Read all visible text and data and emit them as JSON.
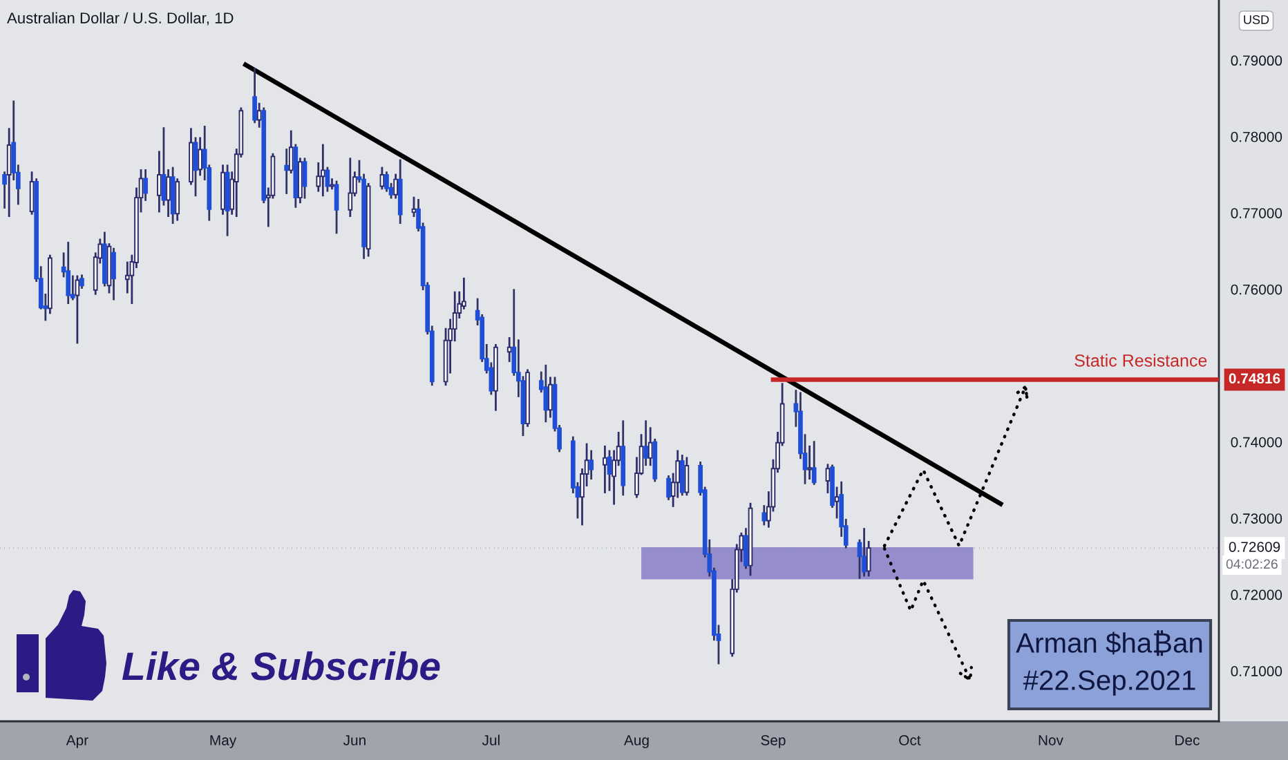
{
  "chart_data": {
    "type": "candlestick",
    "title": "Australian Dollar / U.S. Dollar, 1D",
    "ylabel": "USD",
    "x": [
      "2021-03-16",
      "2021-03-17",
      "2021-03-18",
      "2021-03-19",
      "2021-03-22",
      "2021-03-23",
      "2021-03-24",
      "2021-03-25",
      "2021-03-26",
      "2021-03-29",
      "2021-03-30",
      "2021-03-31",
      "2021-04-01",
      "2021-04-02",
      "2021-04-05",
      "2021-04-06",
      "2021-04-07",
      "2021-04-08",
      "2021-04-09",
      "2021-04-12",
      "2021-04-13",
      "2021-04-14",
      "2021-04-15",
      "2021-04-16",
      "2021-04-19",
      "2021-04-20",
      "2021-04-21",
      "2021-04-22",
      "2021-04-23",
      "2021-04-26",
      "2021-04-27",
      "2021-04-28",
      "2021-04-29",
      "2021-04-30",
      "2021-05-03",
      "2021-05-04",
      "2021-05-05",
      "2021-05-06",
      "2021-05-07",
      "2021-05-10",
      "2021-05-11",
      "2021-05-12",
      "2021-05-13",
      "2021-05-14",
      "2021-05-17",
      "2021-05-18",
      "2021-05-19",
      "2021-05-20",
      "2021-05-21",
      "2021-05-24",
      "2021-05-25",
      "2021-05-26",
      "2021-05-27",
      "2021-05-28",
      "2021-05-31",
      "2021-06-01",
      "2021-06-02",
      "2021-06-03",
      "2021-06-04",
      "2021-06-07",
      "2021-06-08",
      "2021-06-09",
      "2021-06-10",
      "2021-06-11",
      "2021-06-14",
      "2021-06-15",
      "2021-06-16",
      "2021-06-17",
      "2021-06-18",
      "2021-06-21",
      "2021-06-22",
      "2021-06-23",
      "2021-06-24",
      "2021-06-25",
      "2021-06-28",
      "2021-06-29",
      "2021-06-30",
      "2021-07-01",
      "2021-07-02",
      "2021-07-05",
      "2021-07-06",
      "2021-07-07",
      "2021-07-08",
      "2021-07-09",
      "2021-07-12",
      "2021-07-13",
      "2021-07-14",
      "2021-07-15",
      "2021-07-16",
      "2021-07-19",
      "2021-07-20",
      "2021-07-21",
      "2021-07-22",
      "2021-07-23",
      "2021-07-26",
      "2021-07-27",
      "2021-07-28",
      "2021-07-29",
      "2021-07-30",
      "2021-08-02",
      "2021-08-03",
      "2021-08-04",
      "2021-08-05",
      "2021-08-06",
      "2021-08-09",
      "2021-08-10",
      "2021-08-11",
      "2021-08-12",
      "2021-08-13",
      "2021-08-16",
      "2021-08-17",
      "2021-08-18",
      "2021-08-19",
      "2021-08-20",
      "2021-08-23",
      "2021-08-24",
      "2021-08-25",
      "2021-08-26",
      "2021-08-27",
      "2021-08-30",
      "2021-08-31",
      "2021-09-01",
      "2021-09-02",
      "2021-09-03",
      "2021-09-06",
      "2021-09-07",
      "2021-09-08",
      "2021-09-09",
      "2021-09-10",
      "2021-09-13",
      "2021-09-14",
      "2021-09-15",
      "2021-09-16",
      "2021-09-17",
      "2021-09-20",
      "2021-09-21",
      "2021-09-22"
    ],
    "ohlc": [
      [
        0.775,
        0.7753,
        0.7707,
        0.7738
      ],
      [
        0.775,
        0.781,
        0.7696,
        0.7789
      ],
      [
        0.7792,
        0.7846,
        0.7744,
        0.7753
      ],
      [
        0.7753,
        0.7762,
        0.7712,
        0.7732
      ],
      [
        0.7702,
        0.7753,
        0.7699,
        0.7741
      ],
      [
        0.7741,
        0.7744,
        0.7611,
        0.7614
      ],
      [
        0.7614,
        0.7629,
        0.7575,
        0.7576
      ],
      [
        0.7578,
        0.7593,
        0.756,
        0.7575
      ],
      [
        0.7575,
        0.7644,
        0.7569,
        0.7641
      ],
      [
        0.7629,
        0.7647,
        0.7617,
        0.7623
      ],
      [
        0.7624,
        0.7661,
        0.7582,
        0.7592
      ],
      [
        0.7593,
        0.7617,
        0.7587,
        0.7589
      ],
      [
        0.7592,
        0.7617,
        0.753,
        0.7612
      ],
      [
        0.7614,
        0.7618,
        0.7602,
        0.7605
      ],
      [
        0.7599,
        0.7647,
        0.7594,
        0.7642
      ],
      [
        0.7641,
        0.7665,
        0.7635,
        0.7659
      ],
      [
        0.7659,
        0.7674,
        0.7605,
        0.7608
      ],
      [
        0.7605,
        0.7659,
        0.7596,
        0.7656
      ],
      [
        0.7648,
        0.7653,
        0.7587,
        0.7614
      ],
      [
        0.7613,
        0.7635,
        0.7596,
        0.7618
      ],
      [
        0.7618,
        0.7644,
        0.7582,
        0.7636
      ],
      [
        0.7635,
        0.7732,
        0.7629,
        0.772
      ],
      [
        0.772,
        0.7756,
        0.7702,
        0.7745
      ],
      [
        0.7745,
        0.7756,
        0.7717,
        0.7726
      ],
      [
        0.7723,
        0.778,
        0.7702,
        0.775
      ],
      [
        0.775,
        0.7811,
        0.7711,
        0.7717
      ],
      [
        0.7717,
        0.7756,
        0.7696,
        0.7747
      ],
      [
        0.7747,
        0.7759,
        0.7687,
        0.7699
      ],
      [
        0.7699,
        0.7744,
        0.7691,
        0.7741
      ],
      [
        0.7741,
        0.781,
        0.7738,
        0.7792
      ],
      [
        0.7792,
        0.7798,
        0.7723,
        0.7756
      ],
      [
        0.7757,
        0.7798,
        0.775,
        0.7783
      ],
      [
        0.7783,
        0.7813,
        0.7744,
        0.7759
      ],
      [
        0.7759,
        0.7762,
        0.7691,
        0.7705
      ],
      [
        0.7705,
        0.7762,
        0.7699,
        0.7753
      ],
      [
        0.7753,
        0.7762,
        0.7671,
        0.7703
      ],
      [
        0.7705,
        0.7753,
        0.7699,
        0.7744
      ],
      [
        0.7741,
        0.7783,
        0.7696,
        0.7777
      ],
      [
        0.7777,
        0.7837,
        0.7774,
        0.7834
      ],
      [
        0.7852,
        0.7889,
        0.7819,
        0.7822
      ],
      [
        0.7822,
        0.7843,
        0.7813,
        0.7834
      ],
      [
        0.7834,
        0.7837,
        0.7714,
        0.7717
      ],
      [
        0.772,
        0.7732,
        0.7683,
        0.7723
      ],
      [
        0.7723,
        0.7777,
        0.772,
        0.7774
      ],
      [
        0.7762,
        0.7783,
        0.7726,
        0.7756
      ],
      [
        0.7756,
        0.7807,
        0.7753,
        0.7786
      ],
      [
        0.7786,
        0.7789,
        0.7708,
        0.772
      ],
      [
        0.772,
        0.7771,
        0.7714,
        0.7767
      ],
      [
        0.7767,
        0.7771,
        0.772,
        0.7735
      ],
      [
        0.7735,
        0.7765,
        0.7729,
        0.7748
      ],
      [
        0.7748,
        0.7789,
        0.7723,
        0.7756
      ],
      [
        0.7756,
        0.7759,
        0.7729,
        0.7735
      ],
      [
        0.7735,
        0.7744,
        0.7732,
        0.7737
      ],
      [
        0.7737,
        0.7741,
        0.7674,
        0.7704
      ],
      [
        0.7704,
        0.7771,
        0.7696,
        0.7726
      ],
      [
        0.7726,
        0.7753,
        0.7723,
        0.7747
      ],
      [
        0.7747,
        0.7768,
        0.7741,
        0.7744
      ],
      [
        0.7744,
        0.775,
        0.7641,
        0.7656
      ],
      [
        0.7653,
        0.7738,
        0.7644,
        0.7735
      ],
      [
        0.7735,
        0.7759,
        0.7732,
        0.775
      ],
      [
        0.775,
        0.7753,
        0.7729,
        0.7732
      ],
      [
        0.7733,
        0.7738,
        0.772,
        0.7724
      ],
      [
        0.7724,
        0.775,
        0.772,
        0.7744
      ],
      [
        0.7744,
        0.7769,
        0.7687,
        0.7698
      ],
      [
        0.7701,
        0.772,
        0.7696,
        0.7705
      ],
      [
        0.7705,
        0.7717,
        0.7677,
        0.768
      ],
      [
        0.7682,
        0.7686,
        0.76,
        0.7605
      ],
      [
        0.7605,
        0.7608,
        0.7542,
        0.7545
      ],
      [
        0.7545,
        0.7551,
        0.7475,
        0.7479
      ],
      [
        0.7479,
        0.7548,
        0.7475,
        0.7533
      ],
      [
        0.7533,
        0.756,
        0.7491,
        0.7548
      ],
      [
        0.7548,
        0.7596,
        0.7533,
        0.7569
      ],
      [
        0.7569,
        0.7596,
        0.7563,
        0.7581
      ],
      [
        0.7578,
        0.7614,
        0.7575,
        0.7584
      ],
      [
        0.7572,
        0.7587,
        0.7554,
        0.756
      ],
      [
        0.7563,
        0.7566,
        0.7506,
        0.7509
      ],
      [
        0.7509,
        0.7527,
        0.7491,
        0.7494
      ],
      [
        0.7497,
        0.7503,
        0.7463,
        0.7467
      ],
      [
        0.7467,
        0.7527,
        0.7442,
        0.7524
      ],
      [
        0.7518,
        0.7536,
        0.7506,
        0.7524
      ],
      [
        0.7524,
        0.7599,
        0.7488,
        0.7491
      ],
      [
        0.7491,
        0.7533,
        0.746,
        0.748
      ],
      [
        0.748,
        0.7485,
        0.7409,
        0.7424
      ],
      [
        0.7424,
        0.7494,
        0.7421,
        0.7491
      ],
      [
        0.748,
        0.7491,
        0.7466,
        0.7469
      ],
      [
        0.7472,
        0.75,
        0.7427,
        0.7442
      ],
      [
        0.7442,
        0.7484,
        0.7433,
        0.7475
      ],
      [
        0.7475,
        0.7484,
        0.7415,
        0.7418
      ],
      [
        0.7418,
        0.7421,
        0.7388,
        0.7391
      ],
      [
        0.7401,
        0.7406,
        0.7334,
        0.734
      ],
      [
        0.7341,
        0.7346,
        0.7301,
        0.7328
      ],
      [
        0.7328,
        0.7364,
        0.7292,
        0.7358
      ],
      [
        0.7358,
        0.7397,
        0.7343,
        0.7376
      ],
      [
        0.7376,
        0.7388,
        0.7352,
        0.7364
      ],
      [
        0.737,
        0.7394,
        0.7334,
        0.7379
      ],
      [
        0.738,
        0.7388,
        0.7337,
        0.7358
      ],
      [
        0.7355,
        0.7388,
        0.7319,
        0.7376
      ],
      [
        0.7376,
        0.7412,
        0.737,
        0.7394
      ],
      [
        0.7394,
        0.7427,
        0.7331,
        0.7343
      ],
      [
        0.7331,
        0.7379,
        0.7328,
        0.7359
      ],
      [
        0.7359,
        0.7409,
        0.7358,
        0.7394
      ],
      [
        0.7394,
        0.7427,
        0.737,
        0.7379
      ],
      [
        0.7379,
        0.7418,
        0.737,
        0.7399
      ],
      [
        0.74,
        0.7403,
        0.7349,
        0.7352
      ],
      [
        0.7352,
        0.7355,
        0.7325,
        0.7328
      ],
      [
        0.7329,
        0.7358,
        0.7316,
        0.7347
      ],
      [
        0.7347,
        0.7388,
        0.7328,
        0.7375
      ],
      [
        0.7375,
        0.7382,
        0.7331,
        0.7334
      ],
      [
        0.7334,
        0.7379,
        0.7331,
        0.7369
      ],
      [
        0.7369,
        0.7373,
        0.7331,
        0.7334
      ],
      [
        0.7337,
        0.734,
        0.725,
        0.7253
      ],
      [
        0.7253,
        0.7271,
        0.7225,
        0.723
      ],
      [
        0.7231,
        0.7234,
        0.7141,
        0.7147
      ],
      [
        0.7148,
        0.7159,
        0.711,
        0.714
      ],
      [
        0.7123,
        0.7219,
        0.712,
        0.7207
      ],
      [
        0.7207,
        0.7265,
        0.7204,
        0.7259
      ],
      [
        0.7259,
        0.728,
        0.7244,
        0.7277
      ],
      [
        0.7277,
        0.7286,
        0.7235,
        0.7238
      ],
      [
        0.7238,
        0.7319,
        0.7226,
        0.7313
      ],
      [
        0.7307,
        0.7316,
        0.7292,
        0.7297
      ],
      [
        0.7297,
        0.7334,
        0.7289,
        0.7315
      ],
      [
        0.7315,
        0.7376,
        0.731,
        0.7365
      ],
      [
        0.7365,
        0.7412,
        0.7361,
        0.7399
      ],
      [
        0.7399,
        0.7476,
        0.7396,
        0.745
      ],
      [
        0.745,
        0.7467,
        0.7421,
        0.744
      ],
      [
        0.744,
        0.7464,
        0.7379,
        0.7385
      ],
      [
        0.7385,
        0.7409,
        0.7346,
        0.7364
      ],
      [
        0.7364,
        0.7394,
        0.7352,
        0.7366
      ],
      [
        0.7366,
        0.74,
        0.7345,
        0.7347
      ],
      [
        0.7349,
        0.737,
        0.7334,
        0.7365
      ],
      [
        0.7367,
        0.7369,
        0.7315,
        0.7317
      ],
      [
        0.7322,
        0.734,
        0.7301,
        0.7328
      ],
      [
        0.7331,
        0.7347,
        0.7277,
        0.7289
      ],
      [
        0.729,
        0.7298,
        0.7262,
        0.7265
      ],
      [
        0.7268,
        0.7271,
        0.7222,
        0.725
      ],
      [
        0.725,
        0.7286,
        0.7225,
        0.723
      ],
      [
        0.7231,
        0.7269,
        0.7225,
        0.72609
      ]
    ],
    "colors": [
      "#1f4fd6",
      "#ffffff",
      "#1f4fd6",
      "#1f4fd6",
      "#ffffff",
      "#1f4fd6",
      "#1f4fd6",
      "#1f4fd6",
      "#ffffff",
      "#1f4fd6",
      "#1f4fd6",
      "#1f4fd6",
      "#ffffff",
      "#1f4fd6",
      "#ffffff",
      "#ffffff",
      "#1f4fd6",
      "#ffffff",
      "#1f4fd6",
      "#ffffff",
      "#ffffff",
      "#ffffff",
      "#ffffff",
      "#1f4fd6",
      "#ffffff",
      "#1f4fd6",
      "#ffffff",
      "#1f4fd6",
      "#ffffff",
      "#ffffff",
      "#1f4fd6",
      "#ffffff",
      "#1f4fd6",
      "#1f4fd6",
      "#ffffff",
      "#1f4fd6",
      "#ffffff",
      "#ffffff",
      "#ffffff",
      "#1f4fd6",
      "#ffffff",
      "#1f4fd6",
      "#ffffff",
      "#ffffff",
      "#1f4fd6",
      "#ffffff",
      "#1f4fd6",
      "#ffffff",
      "#1f4fd6",
      "#ffffff",
      "#ffffff",
      "#1f4fd6",
      "#ffffff",
      "#1f4fd6",
      "#ffffff",
      "#ffffff",
      "#1f4fd6",
      "#1f4fd6",
      "#ffffff",
      "#ffffff",
      "#1f4fd6",
      "#1f4fd6",
      "#ffffff",
      "#1f4fd6",
      "#ffffff",
      "#1f4fd6",
      "#1f4fd6",
      "#1f4fd6",
      "#1f4fd6",
      "#ffffff",
      "#ffffff",
      "#ffffff",
      "#ffffff",
      "#ffffff",
      "#1f4fd6",
      "#1f4fd6",
      "#1f4fd6",
      "#1f4fd6",
      "#ffffff",
      "#ffffff",
      "#1f4fd6",
      "#1f4fd6",
      "#1f4fd6",
      "#ffffff",
      "#1f4fd6",
      "#1f4fd6",
      "#ffffff",
      "#1f4fd6",
      "#1f4fd6",
      "#1f4fd6",
      "#1f4fd6",
      "#ffffff",
      "#ffffff",
      "#1f4fd6",
      "#ffffff",
      "#1f4fd6",
      "#ffffff",
      "#ffffff",
      "#1f4fd6",
      "#ffffff",
      "#ffffff",
      "#1f4fd6",
      "#ffffff",
      "#1f4fd6",
      "#1f4fd6",
      "#ffffff",
      "#ffffff",
      "#1f4fd6",
      "#ffffff",
      "#1f4fd6",
      "#1f4fd6",
      "#1f4fd6",
      "#1f4fd6",
      "#1f4fd6",
      "#ffffff",
      "#ffffff",
      "#ffffff",
      "#1f4fd6",
      "#ffffff",
      "#1f4fd6",
      "#ffffff",
      "#ffffff",
      "#ffffff",
      "#ffffff",
      "#1f4fd6",
      "#1f4fd6",
      "#1f4fd6",
      "#ffffff",
      "#1f4fd6",
      "#ffffff",
      "#1f4fd6",
      "#ffffff",
      "#1f4fd6",
      "#1f4fd6",
      "#1f4fd6",
      "#1f4fd6",
      "#ffffff"
    ],
    "series": [
      {
        "type": "line",
        "color": "#958dcc",
        "x": [
          "2021-08-03",
          "2021-10-15"
        ],
        "values": [
          null,
          null
        ],
        "lower": [
          0.722,
          0.722
        ],
        "upper": [
          0.7262,
          0.7262
        ]
      },
      {
        "type": "line",
        "color": "#000000",
        "x": [
          "2021-05-08",
          "2021-10-21"
        ],
        "values": [
          0.7894,
          0.7319
        ]
      },
      {
        "type": "line",
        "name": "Static Resistance",
        "color": "#c62828",
        "x": [
          "2021-09-01",
          "2021-12-08"
        ],
        "values": [
          0.74816,
          0.74816
        ],
        "value_labels": [
          null,
          "0.74816"
        ]
      }
    ],
    "ref_lines": [
      {
        "axis": "y",
        "value": 0.72609,
        "label": "0.72609",
        "color": "#8d919a",
        "line_style": "dotted"
      }
    ],
    "annotations": [
      "04:02:26",
      "Like & Subscribe",
      "Arman $ha₿an",
      "#22.Sep.2021"
    ],
    "xlim": [
      "2021-03-15",
      "2021-12-08"
    ],
    "xticks": [
      {
        "value": "2021-04-01",
        "label": "Apr"
      },
      {
        "value": "2021-05-03",
        "label": "May"
      },
      {
        "value": "2021-06-01",
        "label": "Jun"
      },
      {
        "value": "2021-07-01",
        "label": "Jul"
      },
      {
        "value": "2021-08-02",
        "label": "Aug"
      },
      {
        "value": "2021-09-01",
        "label": "Sep"
      },
      {
        "value": "2021-10-01",
        "label": "Oct"
      },
      {
        "value": "2021-11-01",
        "label": "Nov"
      },
      {
        "value": "2021-12-01",
        "label": "Dec"
      }
    ],
    "ylim": [
      0.7034,
      0.7979
    ],
    "yticks": [
      {
        "value": 0.71,
        "label": "0.71000"
      },
      {
        "value": 0.72,
        "label": "0.72000"
      },
      {
        "value": 0.73,
        "label": "0.73000"
      },
      {
        "value": 0.74,
        "label": "0.74000"
      },
      {
        "value": 0.76,
        "label": "0.76000"
      },
      {
        "value": 0.77,
        "label": "0.77000"
      },
      {
        "value": 0.78,
        "label": "0.78000"
      },
      {
        "value": 0.79,
        "label": "0.79000"
      }
    ]
  }
}
